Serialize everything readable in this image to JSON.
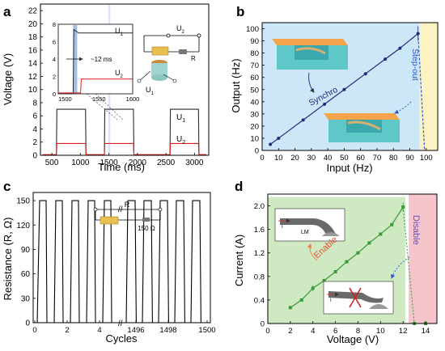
{
  "panels": {
    "a": {
      "letter": "a",
      "xlabel": "Time (ms)",
      "ylabel": "Voltage (V)",
      "xticks": [
        "500",
        "1000",
        "1500",
        "2000",
        "2500",
        "3000"
      ],
      "yticks": [
        "0",
        "2",
        "4",
        "6",
        "8",
        "10",
        "12",
        "14",
        "16",
        "18",
        "20",
        "22"
      ],
      "series_labels": [
        "U",
        "U"
      ],
      "series_subs": [
        "1",
        "2"
      ],
      "inset": {
        "xticks": [
          "1500",
          "1550",
          "1600"
        ],
        "yticks": [
          "0",
          "2",
          "4",
          "6",
          "8"
        ],
        "annotation": "~12 ms",
        "labels": [
          "U",
          "U"
        ],
        "subs": [
          "1",
          "2"
        ]
      },
      "circuit": {
        "u2": "U",
        "u2_sub": "2",
        "r": "R",
        "u1": "U",
        "u1_sub": "1"
      }
    },
    "b": {
      "letter": "b",
      "xlabel": "Input (Hz)",
      "ylabel": "Output (Hz)",
      "xticks": [
        "0",
        "10",
        "20",
        "30",
        "40",
        "50",
        "60",
        "70",
        "80",
        "90",
        "100"
      ],
      "yticks": [
        "0",
        "10",
        "20",
        "30",
        "40",
        "50",
        "60",
        "70",
        "80",
        "90",
        "100"
      ],
      "annotations": [
        "Synchro",
        "Step-out"
      ]
    },
    "c": {
      "letter": "c",
      "xlabel": "Cycles",
      "ylabel": "Resistance (R, Ω)",
      "xticks": [
        "0",
        "2",
        "4",
        "1496",
        "1498",
        "1500"
      ],
      "yticks": [
        "0",
        "30",
        "60",
        "90",
        "120",
        "150"
      ],
      "circuit": {
        "r": "R",
        "resistor": "150 Ω"
      }
    },
    "d": {
      "letter": "d",
      "xlabel": "Voltage (V)",
      "ylabel": "Current (A)",
      "xticks": [
        "0",
        "2",
        "4",
        "6",
        "8",
        "10",
        "12",
        "14"
      ],
      "yticks": [
        "0",
        "0.4",
        "0.8",
        "1.2",
        "1.6",
        "2.0"
      ],
      "annotations": [
        "Enable",
        "Disable"
      ],
      "inset_labels": [
        "LM",
        "I",
        "I"
      ]
    }
  },
  "colors": {
    "u1": "#2b2b2b",
    "u2": "#e02020",
    "synchro_line": "#1a2f7a",
    "stepout_line": "#3a53c8",
    "enable_region": "#cfe9c3",
    "disable_region": "#f6c5cc",
    "synchro_region": "#cce7f7",
    "stepout_region": "#fbf3c3",
    "current_line": "#3a9a3a",
    "enable_text": "#e05030",
    "disable_text": "#6650b0",
    "highlight": "#7da7d9"
  },
  "chart_data": [
    {
      "panel": "a",
      "type": "line",
      "xlim": [
        300,
        3250
      ],
      "ylim": [
        0,
        23
      ],
      "series": [
        {
          "name": "U1",
          "high": 7.0,
          "low": 0.0
        },
        {
          "name": "U2",
          "high": 1.8,
          "low": 0.1
        }
      ],
      "pulses": [
        [
          580,
          1090
        ],
        [
          1420,
          1930
        ],
        [
          2570,
          3070
        ]
      ],
      "inset": {
        "xlim": [
          1490,
          1600
        ],
        "ylim": [
          0,
          8
        ],
        "switch_at": 1523,
        "delay_ms": 12,
        "u1_high": 7.0,
        "u2_high": 1.7
      }
    },
    {
      "panel": "b",
      "type": "scatter",
      "x": [
        5,
        10,
        25,
        38,
        50,
        63,
        75,
        84,
        95
      ],
      "y": [
        5,
        10,
        25,
        38,
        50,
        63,
        75,
        84,
        96
      ],
      "xlim": [
        0,
        107
      ],
      "ylim": [
        0,
        105
      ],
      "stepout": {
        "x": [
          95,
          99
        ],
        "y": [
          96,
          0
        ]
      },
      "regions": [
        {
          "name": "Synchro",
          "x": [
            0,
            96
          ]
        },
        {
          "name": "Step-out",
          "x": [
            96,
            107
          ]
        }
      ]
    },
    {
      "panel": "c",
      "type": "line",
      "ylim": [
        0,
        160
      ],
      "high": 150,
      "low": 0,
      "cycles_left": 5,
      "cycles_right": 5,
      "xticks_left": [
        0,
        2,
        4
      ],
      "xticks_right": [
        1496,
        1498,
        1500
      ]
    },
    {
      "panel": "d",
      "type": "scatter",
      "x": [
        2,
        3,
        4,
        5,
        6,
        7,
        8,
        9,
        10,
        11,
        12
      ],
      "y": [
        0.27,
        0.4,
        0.6,
        0.73,
        0.88,
        1.05,
        1.2,
        1.37,
        1.52,
        1.68,
        1.98
      ],
      "xlim": [
        0,
        15
      ],
      "ylim": [
        0,
        2.2
      ],
      "drop": {
        "x": [
          12,
          13,
          14
        ],
        "y": [
          1.98,
          0,
          0
        ]
      },
      "regions": [
        {
          "name": "Enable",
          "x": [
            0,
            12.2
          ]
        },
        {
          "name": "Disable",
          "x": [
            12.5,
            15
          ]
        }
      ]
    }
  ]
}
